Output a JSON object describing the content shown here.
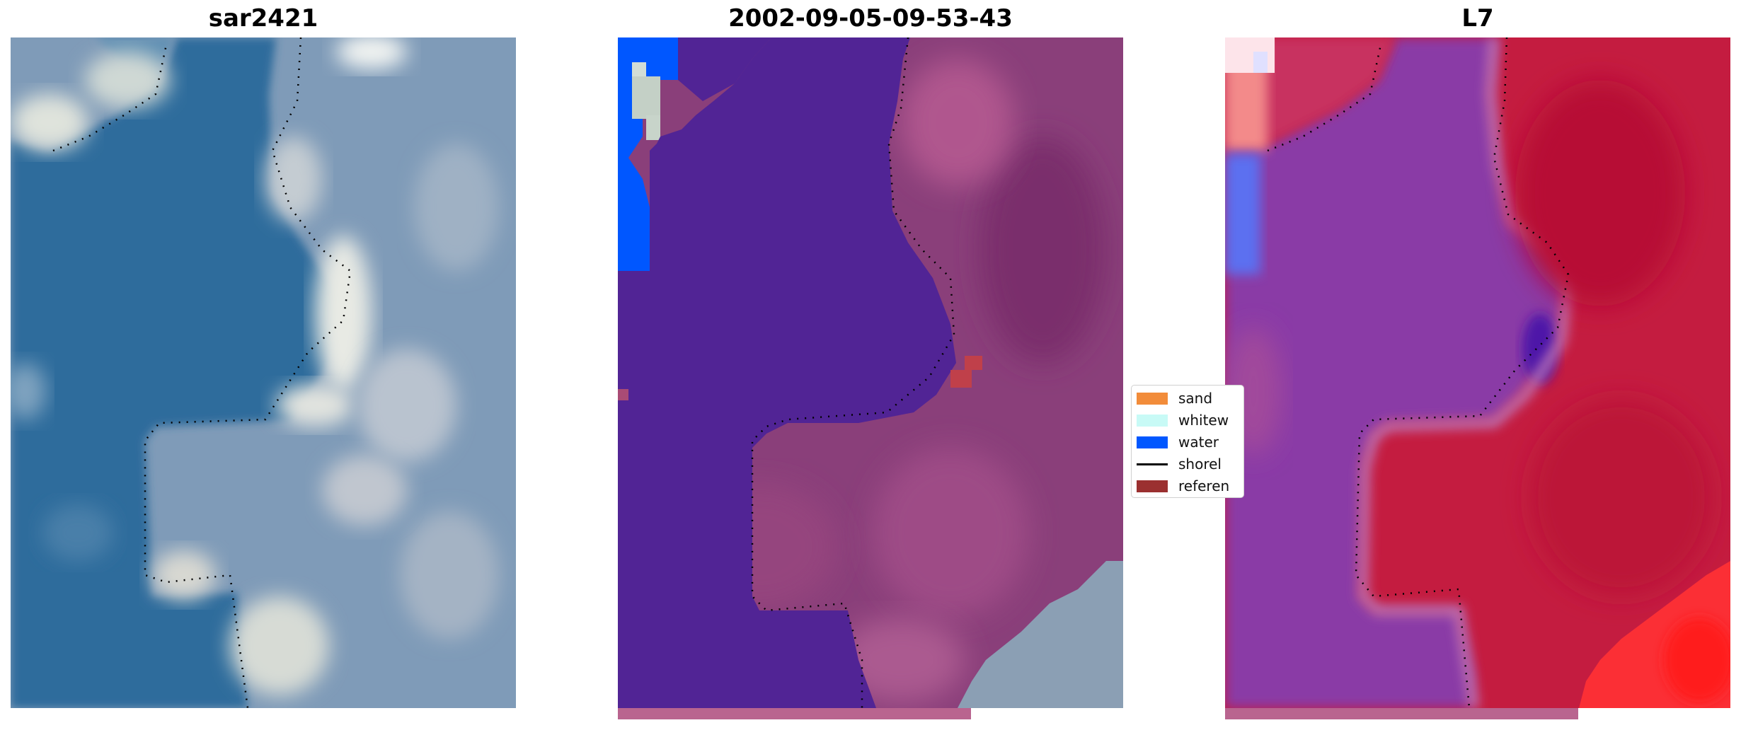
{
  "panels": [
    {
      "title": "sar2421"
    },
    {
      "title": "2002-09-05-09-53-43"
    },
    {
      "title": "L7"
    }
  ],
  "legend": {
    "items": [
      {
        "label": "sand",
        "color": "#f28c3a"
      },
      {
        "label": "whitew",
        "color": "#c8faf6"
      },
      {
        "label": "water",
        "color": "#0057ff"
      },
      {
        "label": "shorel",
        "color": "#000000",
        "type": "line"
      },
      {
        "label": "referen",
        "color": "#9b3030"
      }
    ]
  },
  "colors": {
    "water_rgb": "#2f6c9c",
    "land_rgb": "#a7b3c3",
    "water_class": "#512495",
    "land_class": "#8a3f7a",
    "water_l7": "#8a3aa6",
    "land_l7": "#c41c40"
  }
}
